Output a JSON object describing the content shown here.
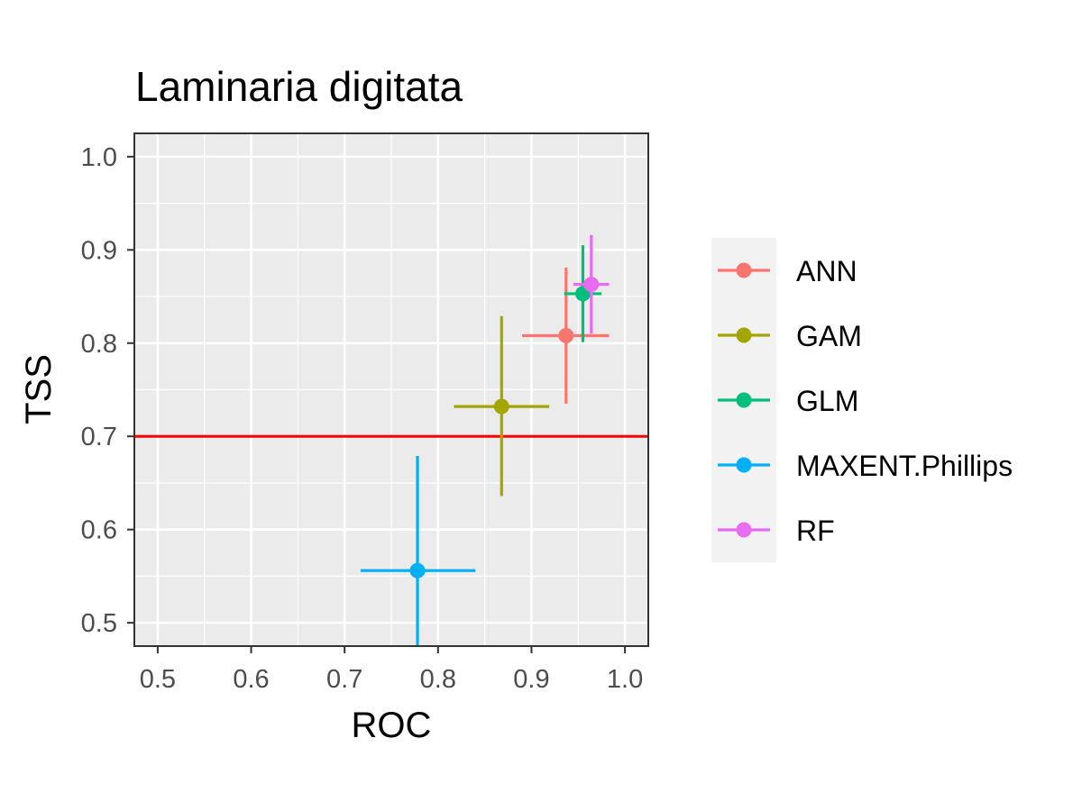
{
  "chart_data": {
    "type": "scatter",
    "title": "Laminaria digitata",
    "xlabel": "ROC",
    "ylabel": "TSS",
    "xlim": [
      0.475,
      1.025
    ],
    "ylim": [
      0.475,
      1.025
    ],
    "x_ticks": [
      0.5,
      0.6,
      0.7,
      0.8,
      0.9,
      1.0
    ],
    "x_tick_labels": [
      "0.5",
      "0.6",
      "0.7",
      "0.8",
      "0.9",
      "1.0"
    ],
    "y_ticks": [
      0.5,
      0.6,
      0.7,
      0.8,
      0.9,
      1.0
    ],
    "y_tick_labels": [
      "0.5",
      "0.6",
      "0.7",
      "0.8",
      "0.9",
      "1.0"
    ],
    "grid": true,
    "legend_position": "right",
    "reference_line": {
      "y": 0.7,
      "color": "#FF0000"
    },
    "series": [
      {
        "name": "ANN",
        "color": "#F8766D",
        "x": 0.937,
        "y": 0.808,
        "x_min": 0.89,
        "x_max": 0.983,
        "y_min": 0.735,
        "y_max": 0.881
      },
      {
        "name": "GAM",
        "color": "#A3A500",
        "x": 0.868,
        "y": 0.732,
        "x_min": 0.817,
        "x_max": 0.919,
        "y_min": 0.636,
        "y_max": 0.829
      },
      {
        "name": "GLM",
        "color": "#00BF7D",
        "x": 0.955,
        "y": 0.853,
        "x_min": 0.935,
        "x_max": 0.975,
        "y_min": 0.801,
        "y_max": 0.905
      },
      {
        "name": "MAXENT.Phillips",
        "color": "#00B0F6",
        "x": 0.778,
        "y": 0.556,
        "x_min": 0.717,
        "x_max": 0.84,
        "y_min": 0.433,
        "y_max": 0.679
      },
      {
        "name": "RF",
        "color": "#E76BF3",
        "x": 0.964,
        "y": 0.863,
        "x_min": 0.945,
        "x_max": 0.983,
        "y_min": 0.81,
        "y_max": 0.916
      }
    ]
  }
}
